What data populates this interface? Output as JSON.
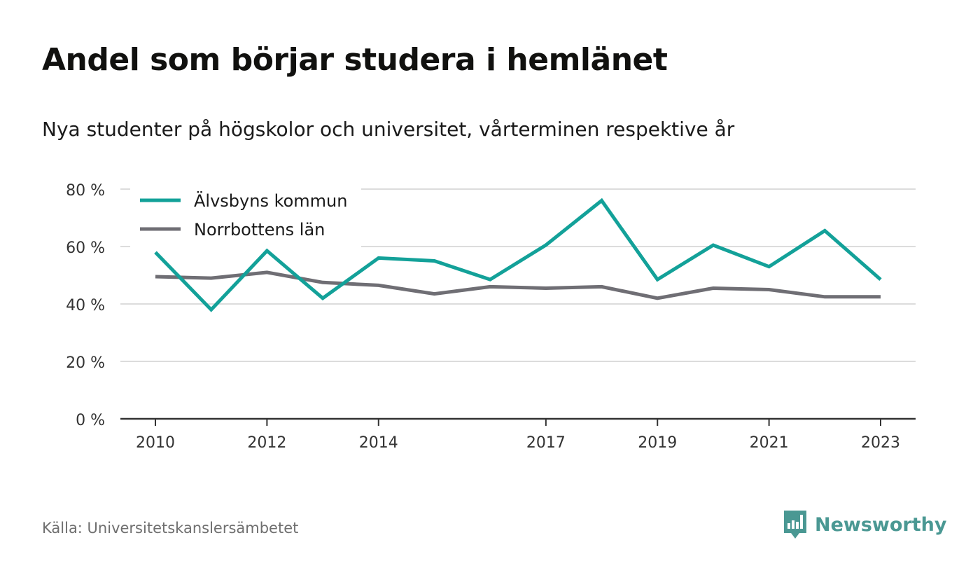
{
  "title": "Andel som börjar studera i hemlänet",
  "subtitle": "Nya studenter på högskolor och universitet, vårterminen respektive år",
  "source": "Källa: Universitetskanslersämbetet",
  "brand": {
    "name": "Newsworthy",
    "icon": "newsworthy-logo-icon",
    "color": "#4a9893"
  },
  "chart_data": {
    "type": "line",
    "x": [
      2010,
      2011,
      2012,
      2013,
      2014,
      2015,
      2016,
      2017,
      2018,
      2019,
      2020,
      2021,
      2022,
      2023
    ],
    "x_tick_labels": [
      "2010",
      "2012",
      "2014",
      "2017",
      "2019",
      "2021",
      "2023"
    ],
    "y_tick_labels": [
      "0 %",
      "20 %",
      "40 %",
      "60 %",
      "80 %"
    ],
    "ylim": [
      0,
      80
    ],
    "grid": true,
    "legend_position": "top-left",
    "series": [
      {
        "name": "Älvsbyns kommun",
        "color": "#13a199",
        "values": [
          58,
          38,
          58.5,
          42,
          56,
          55,
          48.5,
          60.5,
          76,
          48.5,
          60.5,
          53,
          65.5,
          48.5
        ]
      },
      {
        "name": "Norrbottens län",
        "color": "#6f6e74",
        "values": [
          49.5,
          49,
          51,
          47.5,
          46.5,
          43.5,
          46,
          45.5,
          46,
          42,
          45.5,
          45,
          42.5,
          42.5
        ]
      }
    ]
  }
}
